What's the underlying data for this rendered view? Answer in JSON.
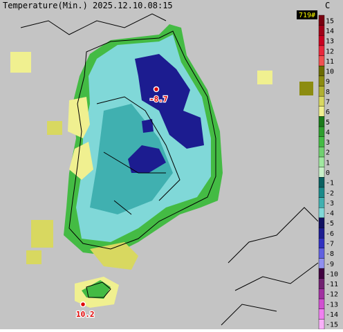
{
  "header": {
    "title": "Temperature(Min.) 2025.12.10.08:15",
    "station_count": "719#"
  },
  "scale": {
    "unit": "C",
    "labels": [
      15,
      14,
      13,
      12,
      11,
      10,
      9,
      8,
      7,
      6,
      5,
      4,
      3,
      2,
      1,
      0,
      -1,
      -2,
      -3,
      -4,
      -5,
      -6,
      -7,
      -8,
      -9,
      -10,
      -11,
      -12,
      -13,
      -14,
      -15
    ],
    "colors": [
      "#7a0010",
      "#a00018",
      "#c80020",
      "#e8283c",
      "#f05050",
      "#6b6b00",
      "#8c8c10",
      "#b0b030",
      "#d8d860",
      "#f0f090",
      "#1a7a1a",
      "#2e9e2e",
      "#44bb44",
      "#70d070",
      "#a0e8a0",
      "#c8f0c8",
      "#0a6060",
      "#1a8a8a",
      "#40b0b0",
      "#80d8d8",
      "#101060",
      "#1c1c90",
      "#3030c0",
      "#6060e0",
      "#9090f0",
      "#400040",
      "#702070",
      "#a030a0",
      "#d050d0",
      "#f080f0",
      "#f8b0f8"
    ]
  },
  "markers": [
    {
      "label": "-8.7"
    },
    {
      "label": "10.2"
    }
  ]
}
